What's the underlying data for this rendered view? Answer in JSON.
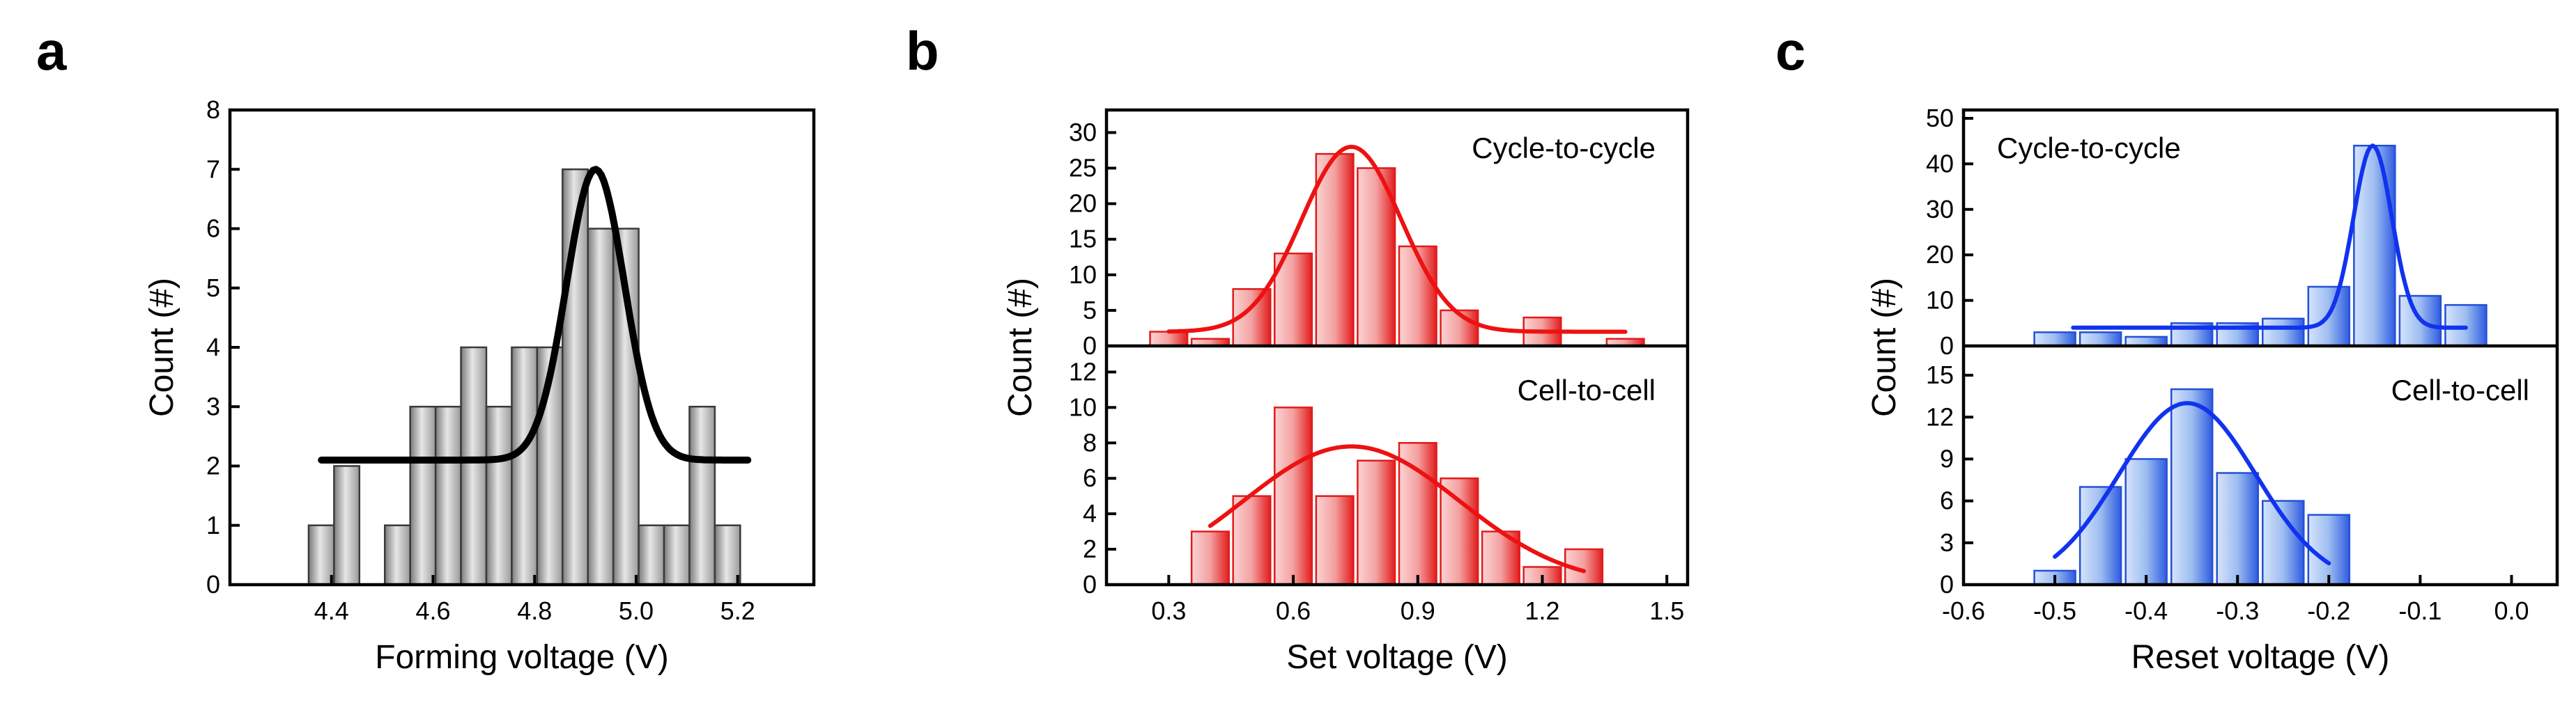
{
  "chart_data": [
    {
      "panel": "a",
      "type": "bar",
      "xlabel": "Forming voltage (V)",
      "ylabel": "Count (#)",
      "xlim": [
        4.2,
        5.35
      ],
      "xticks": [
        4.4,
        4.6,
        4.8,
        5.0,
        5.2
      ],
      "xtick_labels": [
        "4.4",
        "4.6",
        "4.8",
        "5.0",
        "5.2"
      ],
      "bar_width": 0.05,
      "colors": {
        "bar_fill": "#c6c6c6",
        "bar_edge": "#3a3a3a",
        "fit": "#000000"
      },
      "subplots": [
        {
          "ylim": [
            0,
            8
          ],
          "yticks": [
            0,
            1,
            2,
            3,
            4,
            5,
            6,
            7,
            8
          ],
          "ytick_labels": [
            "0",
            "1",
            "2",
            "3",
            "4",
            "5",
            "6",
            "7",
            "8"
          ],
          "bar_x": [
            4.38,
            4.43,
            4.53,
            4.58,
            4.63,
            4.68,
            4.73,
            4.78,
            4.83,
            4.88,
            4.93,
            4.98,
            5.03,
            5.08,
            5.13,
            5.18
          ],
          "bar_values": [
            1,
            2,
            1,
            3,
            3,
            4,
            3,
            4,
            4,
            7,
            6,
            6,
            1,
            1,
            3,
            1
          ],
          "fit": {
            "type": "gaussian",
            "baseline": 2.1,
            "amplitude": 4.9,
            "center": 4.92,
            "sigma": 0.057,
            "x_range": [
              4.38,
              5.22
            ]
          }
        }
      ]
    },
    {
      "panel": "b",
      "type": "bar",
      "xlabel": "Set voltage (V)",
      "ylabel": "Count (#)",
      "xlim": [
        0.15,
        1.55
      ],
      "xticks": [
        0.3,
        0.6,
        0.9,
        1.2,
        1.5
      ],
      "xtick_labels": [
        "0.3",
        "0.6",
        "0.9",
        "1.2",
        "1.5"
      ],
      "bar_width": 0.09,
      "colors": {
        "bar_fill": "#f59c9c",
        "bar_edge": "#e21b1b",
        "fit": "#ee1111"
      },
      "subplots": [
        {
          "annotation": "Cycle-to-cycle",
          "ylim": [
            0,
            32
          ],
          "yticks": [
            0,
            5,
            10,
            15,
            20,
            25,
            30
          ],
          "ytick_labels": [
            "0",
            "5",
            "10",
            "15",
            "20",
            "25",
            "30"
          ],
          "bar_x": [
            0.3,
            0.4,
            0.5,
            0.6,
            0.7,
            0.8,
            0.9,
            1.0,
            1.1,
            1.2,
            1.3,
            1.4
          ],
          "bar_values": [
            2,
            1,
            8,
            13,
            27,
            25,
            14,
            5,
            0,
            4,
            0,
            1
          ],
          "fit": {
            "type": "gaussian",
            "baseline": 2,
            "amplitude": 26,
            "center": 0.74,
            "sigma": 0.12,
            "x_range": [
              0.3,
              1.4
            ]
          }
        },
        {
          "annotation": "Cell-to-cell",
          "ylim": [
            0,
            13
          ],
          "yticks": [
            0,
            2,
            4,
            6,
            8,
            10,
            12
          ],
          "ytick_labels": [
            "0",
            "2",
            "4",
            "6",
            "8",
            "10",
            "12"
          ],
          "bar_x": [
            0.4,
            0.5,
            0.6,
            0.7,
            0.8,
            0.9,
            1.0,
            1.1,
            1.2,
            1.3
          ],
          "bar_values": [
            3,
            5,
            10,
            5,
            7,
            8,
            6,
            3,
            1,
            2
          ],
          "fit": {
            "type": "gaussian",
            "baseline": 0,
            "amplitude": 7.8,
            "center": 0.74,
            "sigma": 0.26,
            "x_range": [
              0.4,
              1.3
            ]
          }
        }
      ]
    },
    {
      "panel": "c",
      "type": "bar",
      "xlabel": "Reset voltage (V)",
      "ylabel": "Count (#)",
      "xlim": [
        -0.6,
        0.05
      ],
      "xticks": [
        -0.6,
        -0.5,
        -0.4,
        -0.3,
        -0.2,
        -0.1,
        0.0
      ],
      "xtick_labels": [
        "-0.6",
        "-0.5",
        "-0.4",
        "-0.3",
        "-0.2",
        "-0.1",
        "0.0"
      ],
      "bar_width": 0.045,
      "colors": {
        "bar_fill": "#9bbcf2",
        "bar_edge": "#2450d8",
        "fit": "#1133ee"
      },
      "subplots": [
        {
          "annotation": "Cycle-to-cycle",
          "ylim": [
            0,
            50
          ],
          "yticks": [
            0,
            10,
            20,
            30,
            40,
            50
          ],
          "ytick_labels": [
            "0",
            "10",
            "20",
            "30",
            "40",
            "50"
          ],
          "bar_x": [
            -0.5,
            -0.45,
            -0.4,
            -0.35,
            -0.3,
            -0.25,
            -0.2,
            -0.15,
            -0.1,
            -0.05
          ],
          "bar_values": [
            3,
            3,
            2,
            5,
            5,
            6,
            13,
            44,
            11,
            9
          ],
          "fit": {
            "type": "gaussian",
            "baseline": 4,
            "amplitude": 40,
            "center": -0.152,
            "sigma": 0.021,
            "x_range": [
              -0.48,
              -0.05
            ]
          }
        },
        {
          "annotation": "Cell-to-cell",
          "ylim": [
            0,
            16.5
          ],
          "yticks": [
            0,
            3,
            6,
            9,
            12,
            15
          ],
          "ytick_labels": [
            "0",
            "3",
            "6",
            "9",
            "12",
            "15"
          ],
          "bar_x": [
            -0.5,
            -0.45,
            -0.4,
            -0.35,
            -0.3,
            -0.25,
            -0.2
          ],
          "bar_values": [
            1,
            7,
            9,
            14,
            8,
            6,
            5
          ],
          "fit": {
            "type": "gaussian",
            "baseline": 0,
            "amplitude": 13,
            "center": -0.355,
            "sigma": 0.075,
            "x_range": [
              -0.5,
              -0.2
            ]
          }
        }
      ]
    }
  ]
}
